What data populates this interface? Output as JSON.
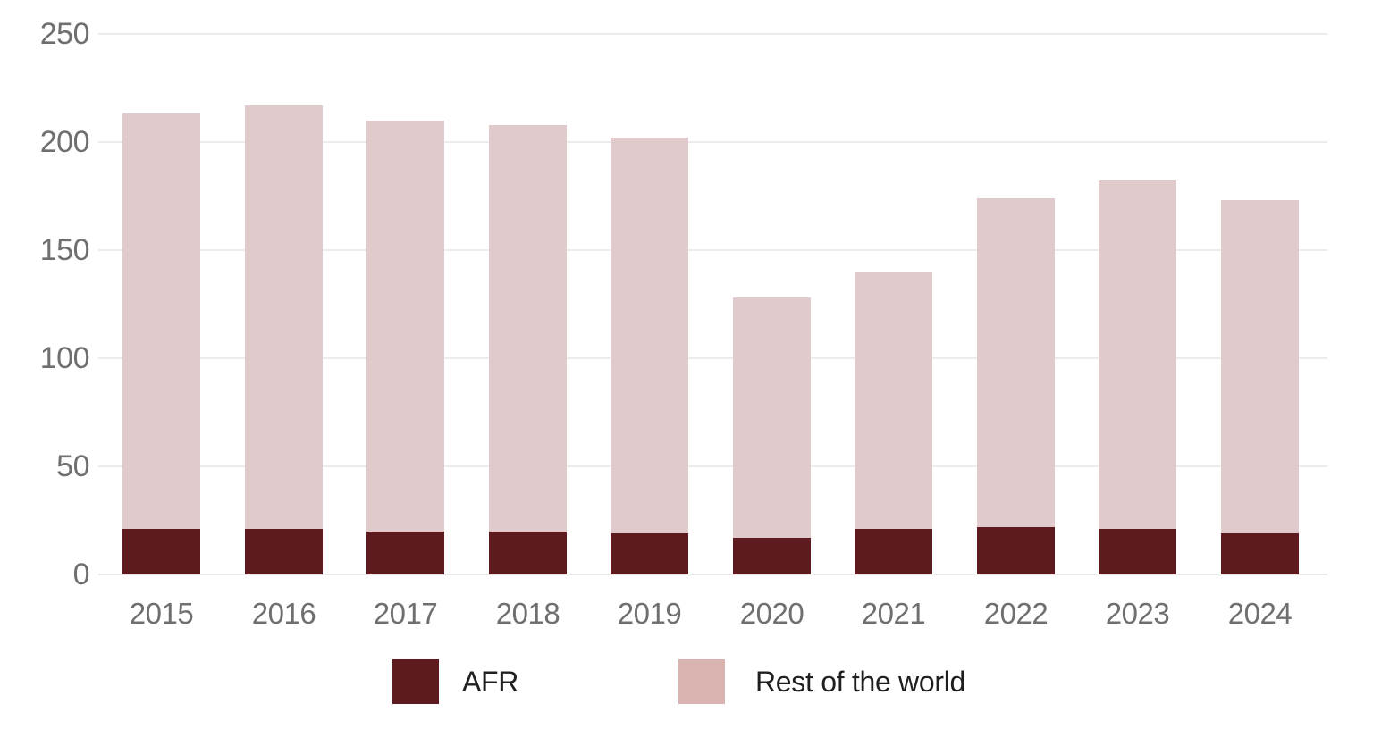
{
  "chart_data": {
    "type": "bar",
    "stacked": true,
    "title": "",
    "xlabel": "",
    "ylabel": "",
    "categories": [
      "2015",
      "2016",
      "2017",
      "2018",
      "2019",
      "2020",
      "2021",
      "2022",
      "2023",
      "2024"
    ],
    "series": [
      {
        "name": "AFR",
        "color": "#5d1b1f",
        "legend_color": "#5d1b1f",
        "values": [
          21,
          21,
          20,
          20,
          19,
          17,
          21,
          22,
          21,
          19
        ]
      },
      {
        "name": "Rest of the world",
        "color": "#e0cacb",
        "legend_color": "#d8b3b0",
        "values": [
          192,
          196,
          190,
          188,
          183,
          111,
          119,
          152,
          161,
          154
        ]
      }
    ],
    "stack_totals": [
      213,
      217,
      210,
      208,
      202,
      128,
      140,
      174,
      182,
      173
    ],
    "ylim": [
      0,
      250
    ],
    "yticks": [
      0,
      50,
      100,
      150,
      200,
      250
    ],
    "grid": true,
    "legend_position": "bottom"
  },
  "colors": {
    "background": "#ffffff",
    "gridline": "#ececec",
    "axis_text": "#6f6f6f",
    "legend_text": "#1f1f1f"
  }
}
